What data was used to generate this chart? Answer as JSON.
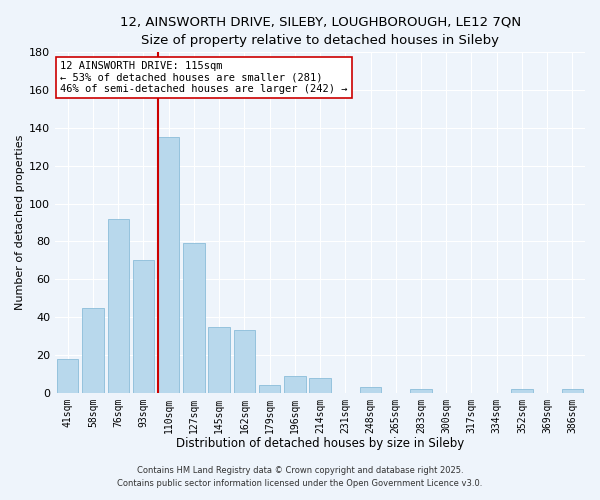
{
  "title1": "12, AINSWORTH DRIVE, SILEBY, LOUGHBOROUGH, LE12 7QN",
  "title2": "Size of property relative to detached houses in Sileby",
  "xlabel": "Distribution of detached houses by size in Sileby",
  "ylabel": "Number of detached properties",
  "bar_color": "#b8d8ec",
  "bar_edge_color": "#8bbdd9",
  "vline_color": "#cc0000",
  "categories": [
    "41sqm",
    "58sqm",
    "76sqm",
    "93sqm",
    "110sqm",
    "127sqm",
    "145sqm",
    "162sqm",
    "179sqm",
    "196sqm",
    "214sqm",
    "231sqm",
    "248sqm",
    "265sqm",
    "283sqm",
    "300sqm",
    "317sqm",
    "334sqm",
    "352sqm",
    "369sqm",
    "386sqm"
  ],
  "values": [
    18,
    45,
    92,
    70,
    135,
    79,
    35,
    33,
    4,
    9,
    8,
    0,
    3,
    0,
    2,
    0,
    0,
    0,
    2,
    0,
    2
  ],
  "vline_index": 4,
  "annotation_line1": "12 AINSWORTH DRIVE: 115sqm",
  "annotation_line2": "← 53% of detached houses are smaller (281)",
  "annotation_line3": "46% of semi-detached houses are larger (242) →",
  "ylim": [
    0,
    180
  ],
  "yticks": [
    0,
    20,
    40,
    60,
    80,
    100,
    120,
    140,
    160,
    180
  ],
  "footnote1": "Contains HM Land Registry data © Crown copyright and database right 2025.",
  "footnote2": "Contains public sector information licensed under the Open Government Licence v3.0.",
  "background_color": "#eef4fb",
  "grid_color": "#ffffff",
  "title1_fontsize": 9.5,
  "title2_fontsize": 8.5
}
